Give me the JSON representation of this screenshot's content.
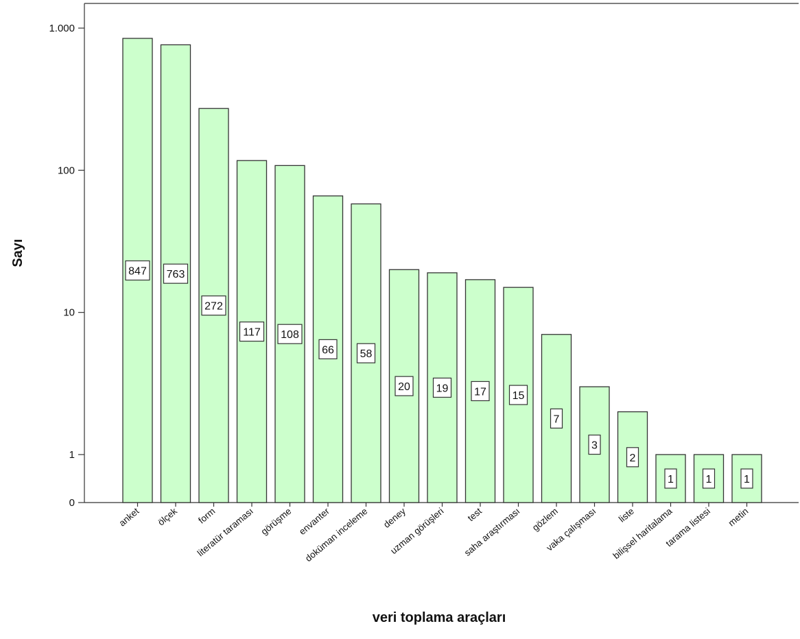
{
  "chart_data": {
    "type": "bar",
    "xlabel": "veri toplama araçları",
    "ylabel": "Sayı",
    "yscale": "log",
    "ylim": [
      0.3,
      1800
    ],
    "yticks": [
      {
        "value": 1000,
        "label": "1.000"
      },
      {
        "value": 100,
        "label": "100"
      },
      {
        "value": 10,
        "label": "10"
      },
      {
        "value": 1,
        "label": "1"
      },
      {
        "value": 0.3,
        "label": "0"
      }
    ],
    "categories": [
      "anket",
      "ölçek",
      "form",
      "literatür taraması",
      "görüşme",
      "envanter",
      "doküman inceleme",
      "deney",
      "uzman görüşleri",
      "test",
      "saha araştırması",
      "gözlem",
      "vaka çalışması",
      "liste",
      "bilişsel haritalama",
      "tarama listesi",
      "metin"
    ],
    "values": [
      847,
      763,
      272,
      117,
      108,
      66,
      58,
      20,
      19,
      17,
      15,
      7,
      3,
      2,
      1,
      1,
      1
    ],
    "data_labels": [
      "847",
      "763",
      "272",
      "117",
      "108",
      "66",
      "58",
      "20",
      "19",
      "17",
      "15",
      "7",
      "3",
      "2",
      "1",
      "1",
      "1"
    ],
    "bar_color": "#ccffcc",
    "bar_stroke": "#333333",
    "grid": false,
    "legend": "none"
  }
}
